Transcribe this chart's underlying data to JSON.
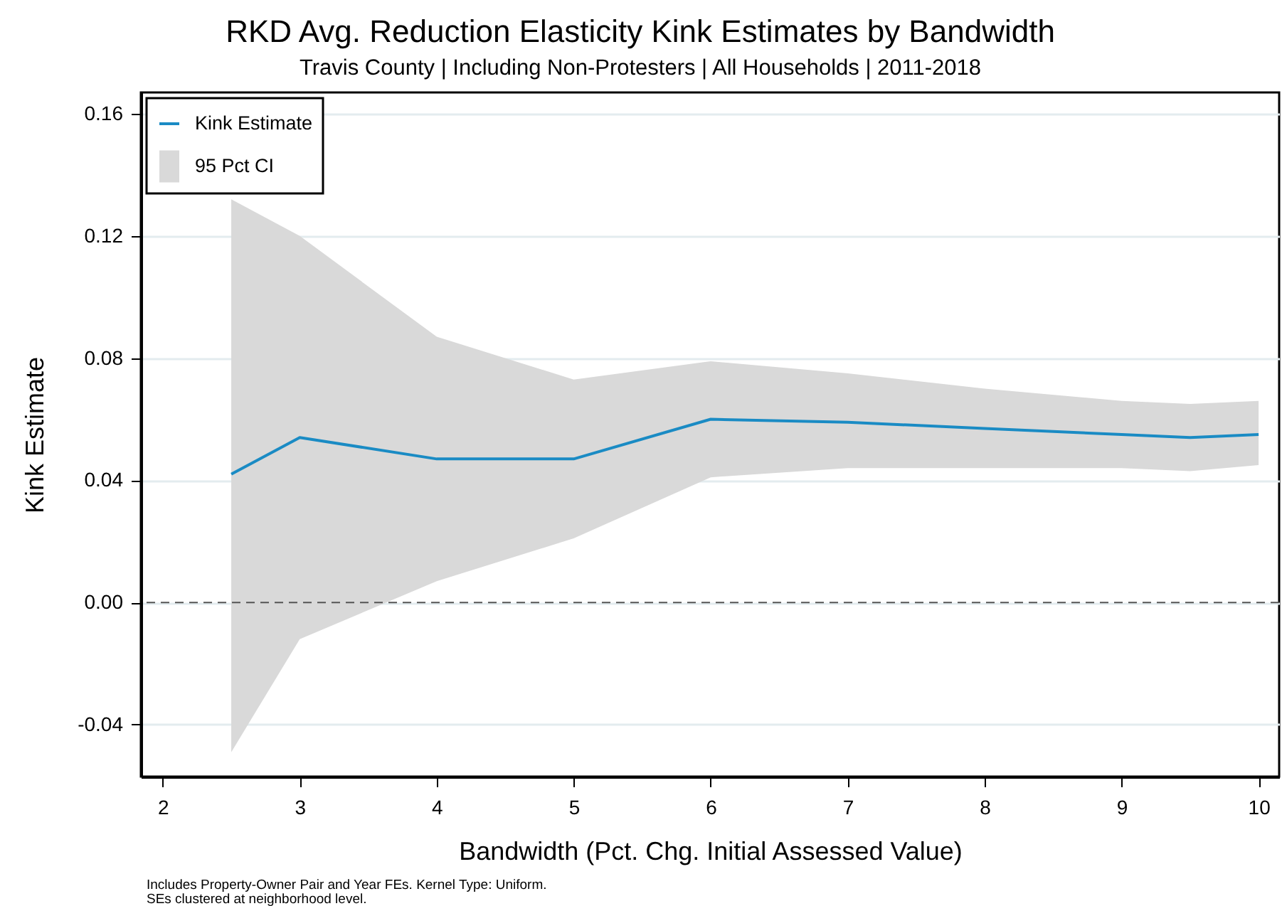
{
  "chart_data": {
    "type": "line",
    "title": "RKD Avg. Reduction Elasticity Kink Estimates by Bandwidth",
    "subtitle": "Travis County | Including Non-Protesters | All Households | 2011-2018",
    "xlabel": "Bandwidth (Pct. Chg. Initial Assessed Value)",
    "ylabel": "Kink Estimate",
    "x": [
      2.5,
      3,
      4,
      5,
      6,
      7,
      8,
      9,
      9.5,
      10
    ],
    "series": [
      {
        "name": "Kink Estimate",
        "color": "#1a8bc4",
        "values": [
          0.042,
          0.054,
          0.047,
          0.047,
          0.06,
          0.059,
          0.057,
          0.055,
          0.054,
          0.055
        ]
      },
      {
        "name": "95 Pct CI",
        "color": "#d9d9d9",
        "values": [
          null,
          null,
          null,
          null,
          null,
          null,
          null,
          null,
          null,
          null
        ],
        "lower": [
          -0.049,
          -0.012,
          0.007,
          0.021,
          0.041,
          0.044,
          0.044,
          0.044,
          0.043,
          0.045
        ],
        "upper": [
          0.132,
          0.12,
          0.087,
          0.073,
          0.079,
          0.075,
          0.07,
          0.066,
          0.065,
          0.066
        ]
      }
    ],
    "xlim": [
      1.84,
      10.15
    ],
    "xticks": [
      2,
      3,
      4,
      5,
      6,
      7,
      8,
      9,
      10
    ],
    "ylim": [
      -0.057,
      0.167
    ],
    "yticks": [
      -0.04,
      {
        "value": 0,
        "label": "0.00"
      },
      0.04,
      0.08,
      0.12,
      0.16
    ],
    "ref_lines": [
      {
        "axis": "y",
        "value": 0,
        "color": "#555555",
        "line_style": "dashed"
      }
    ],
    "grid": "y",
    "legend": "top left",
    "annotations": [
      "Includes Property-Owner Pair and Year FEs. Kernel Type: Uniform.",
      "SEs clustered at neighborhood level."
    ]
  }
}
